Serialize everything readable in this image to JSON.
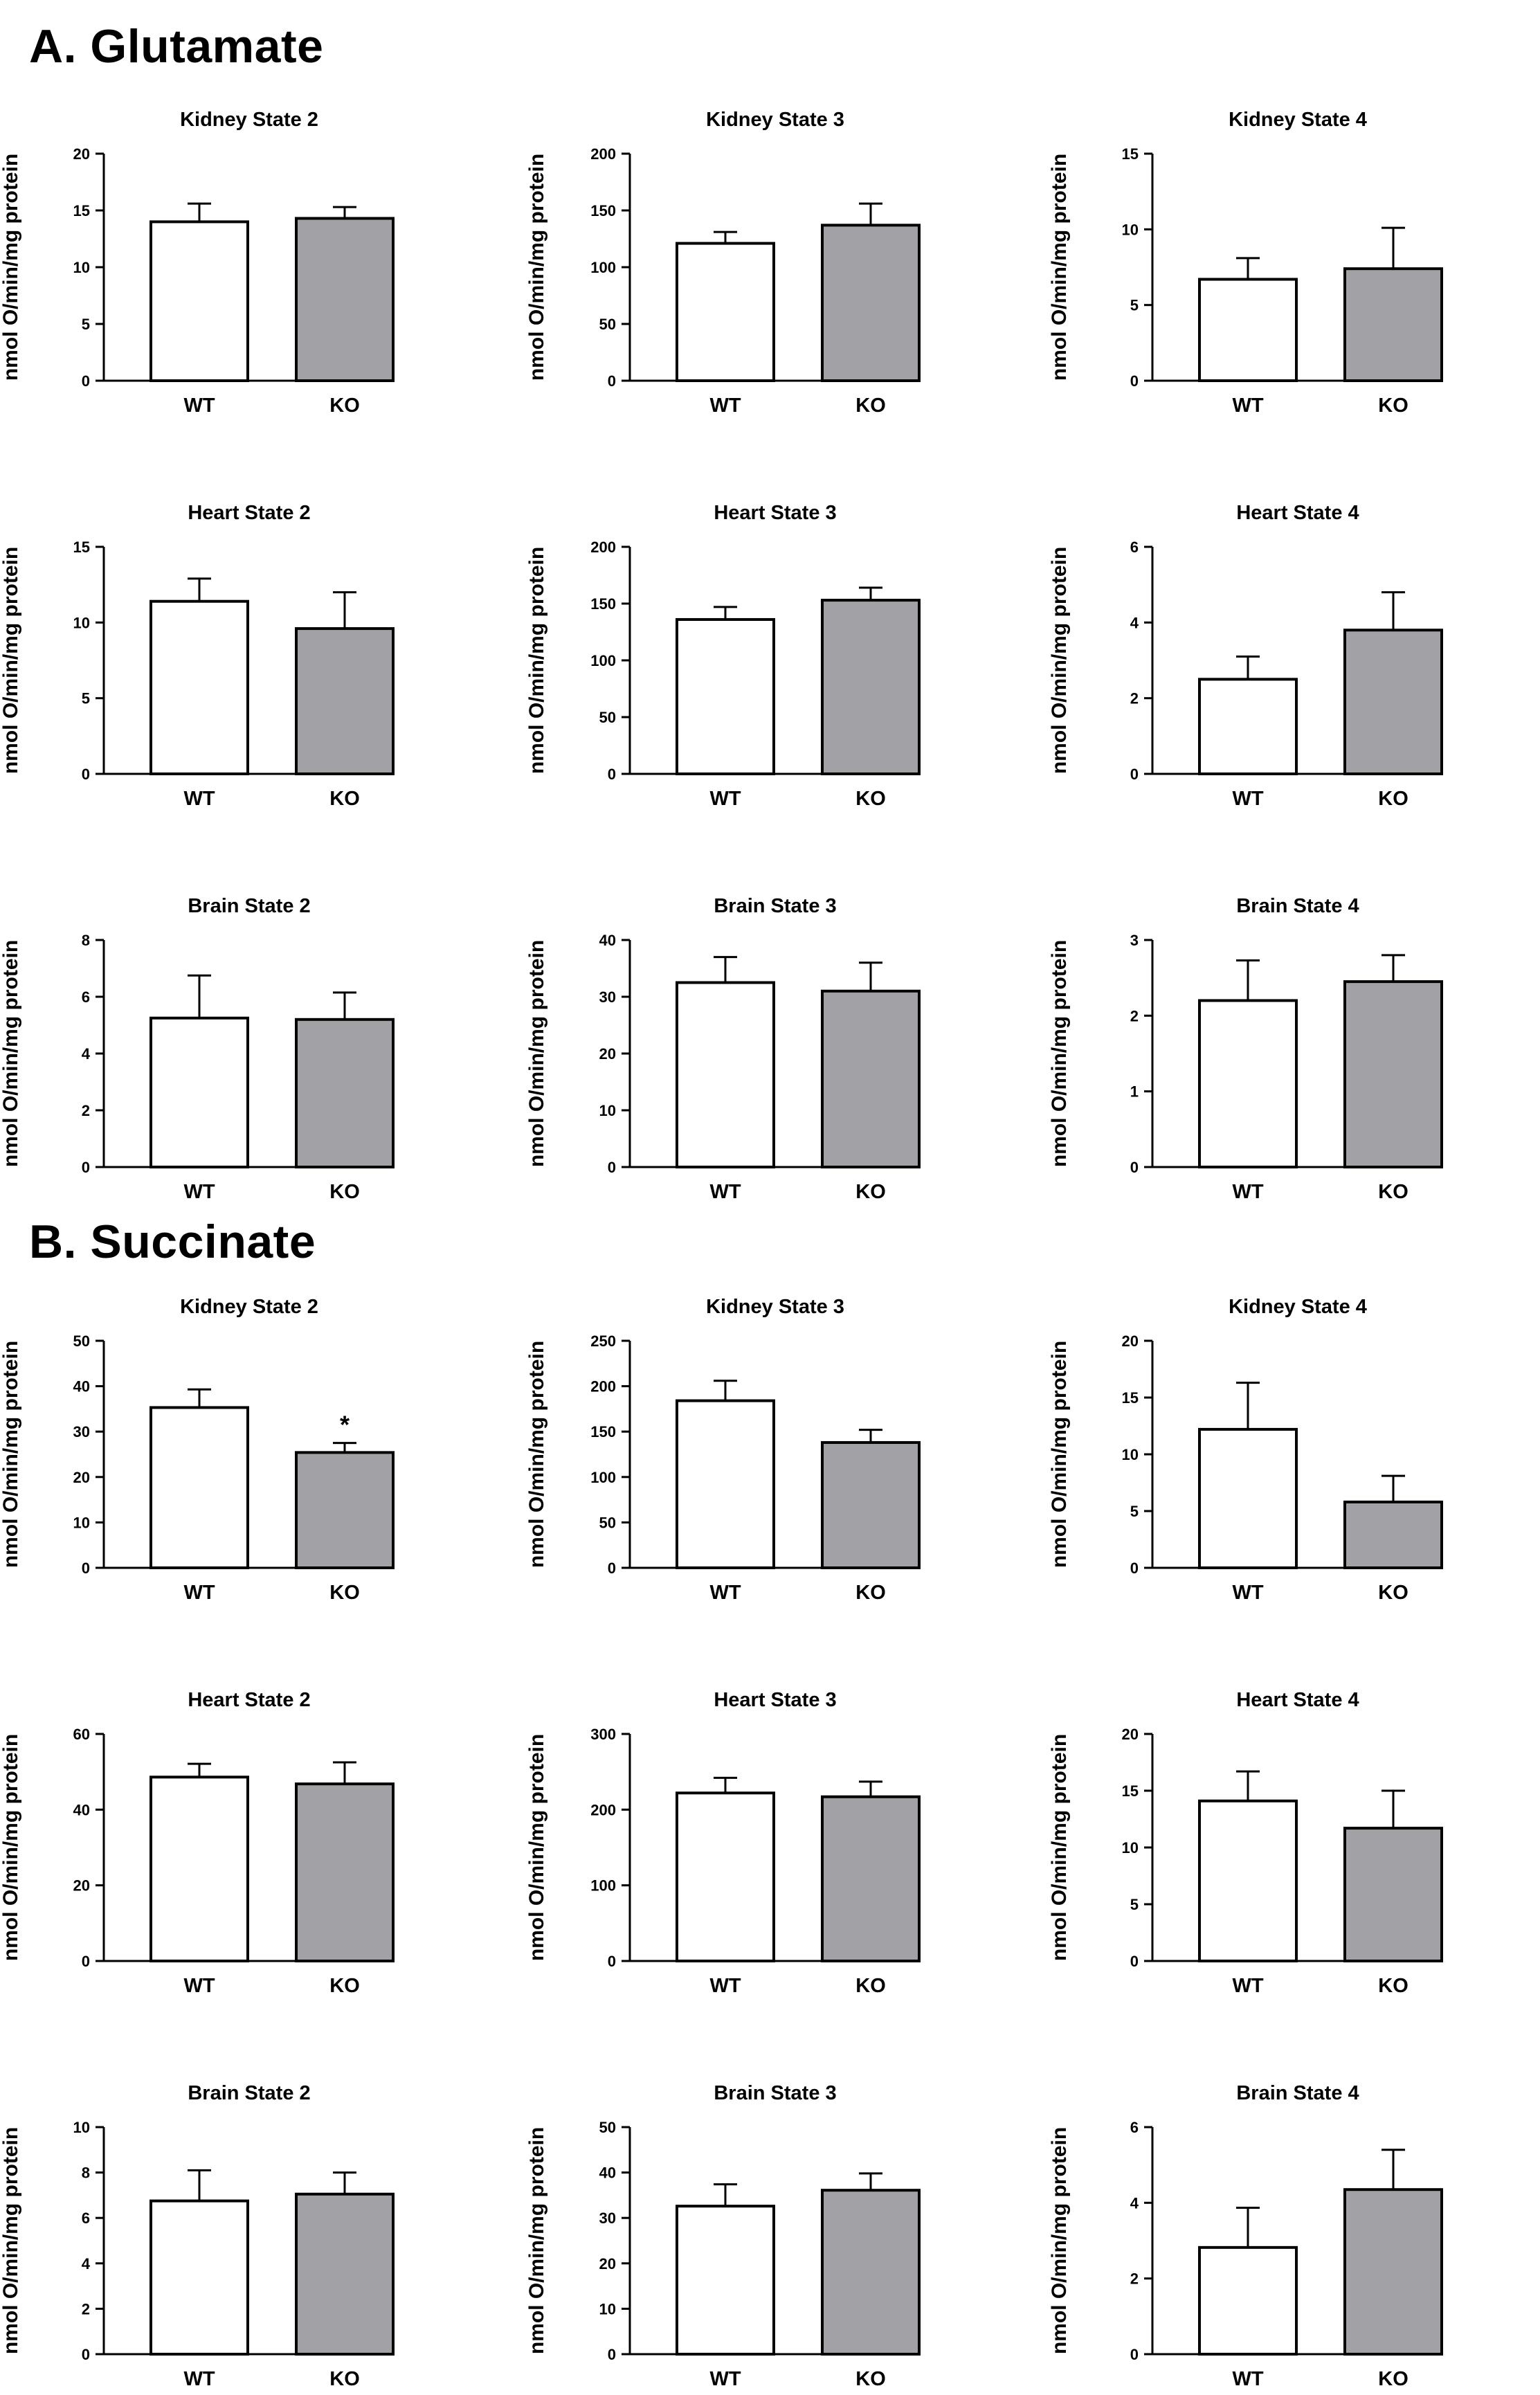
{
  "sections": [
    {
      "heading": "A.  Glutamate"
    },
    {
      "heading": "B.  Succinate"
    }
  ],
  "style": {
    "wt_fill": "#ffffff",
    "ko_fill": "#a2a2a6",
    "stroke": "#000000"
  },
  "chart_data": [
    {
      "type": "bar",
      "section": "A.  Glutamate",
      "title": "Kidney State 2",
      "categories": [
        "WT",
        "KO"
      ],
      "values": [
        14,
        14.3
      ],
      "errors": [
        1.6,
        1.0
      ],
      "ylabel": "nmol O/min/mg protein",
      "ylim": [
        0,
        20
      ],
      "yticks": [
        "0",
        "5",
        "10",
        "15",
        "20"
      ],
      "annotation": ""
    },
    {
      "type": "bar",
      "section": "A.  Glutamate",
      "title": "Kidney State 3",
      "categories": [
        "WT",
        "KO"
      ],
      "values": [
        121,
        137
      ],
      "errors": [
        10,
        19
      ],
      "ylabel": "nmol O/min/mg protein",
      "ylim": [
        0,
        200
      ],
      "yticks": [
        "0",
        "50",
        "100",
        "150",
        "200"
      ],
      "annotation": ""
    },
    {
      "type": "bar",
      "section": "A.  Glutamate",
      "title": "Kidney State 4",
      "categories": [
        "WT",
        "KO"
      ],
      "values": [
        6.7,
        7.4
      ],
      "errors": [
        1.4,
        2.7
      ],
      "ylabel": "nmol O/min/mg protein",
      "ylim": [
        0,
        15
      ],
      "yticks": [
        "0",
        "5",
        "10",
        "15"
      ],
      "annotation": ""
    },
    {
      "type": "bar",
      "section": "A.  Glutamate",
      "title": "Heart State 2",
      "categories": [
        "WT",
        "KO"
      ],
      "values": [
        11.4,
        9.6
      ],
      "errors": [
        1.5,
        2.4
      ],
      "ylabel": "nmol O/min/mg protein",
      "ylim": [
        0,
        15
      ],
      "yticks": [
        "0",
        "5",
        "10",
        "15"
      ],
      "annotation": ""
    },
    {
      "type": "bar",
      "section": "A.  Glutamate",
      "title": "Heart State 3",
      "categories": [
        "WT",
        "KO"
      ],
      "values": [
        136,
        153
      ],
      "errors": [
        11,
        11
      ],
      "ylabel": "nmol O/min/mg protein",
      "ylim": [
        0,
        200
      ],
      "yticks": [
        "0",
        "50",
        "100",
        "150",
        "200"
      ],
      "annotation": ""
    },
    {
      "type": "bar",
      "section": "A.  Glutamate",
      "title": "Heart State 4",
      "categories": [
        "WT",
        "KO"
      ],
      "values": [
        2.5,
        3.8
      ],
      "errors": [
        0.6,
        1.0
      ],
      "ylabel": "nmol O/min/mg protein",
      "ylim": [
        0,
        6
      ],
      "yticks": [
        "0",
        "2",
        "4",
        "6"
      ],
      "annotation": ""
    },
    {
      "type": "bar",
      "section": "A.  Glutamate",
      "title": "Brain State 2",
      "categories": [
        "WT",
        "KO"
      ],
      "values": [
        5.25,
        5.2
      ],
      "errors": [
        1.5,
        0.95
      ],
      "ylabel": "nmol O/min/mg protein",
      "ylim": [
        0,
        8
      ],
      "yticks": [
        "0",
        "2",
        "4",
        "6",
        "8"
      ],
      "annotation": ""
    },
    {
      "type": "bar",
      "section": "A.  Glutamate",
      "title": "Brain State 3",
      "categories": [
        "WT",
        "KO"
      ],
      "values": [
        32.5,
        31
      ],
      "errors": [
        4.5,
        5
      ],
      "ylabel": "nmol O/min/mg protein",
      "ylim": [
        0,
        40
      ],
      "yticks": [
        "0",
        "10",
        "20",
        "30",
        "40"
      ],
      "annotation": ""
    },
    {
      "type": "bar",
      "section": "A.  Glutamate",
      "title": "Brain State 4",
      "categories": [
        "WT",
        "KO"
      ],
      "values": [
        2.2,
        2.45
      ],
      "errors": [
        0.53,
        0.35
      ],
      "ylabel": "nmol O/min/mg protein",
      "ylim": [
        0,
        3
      ],
      "yticks": [
        "0",
        "1",
        "2",
        "3"
      ],
      "annotation": ""
    },
    {
      "type": "bar",
      "section": "B.  Succinate",
      "title": "Kidney State 2",
      "categories": [
        "WT",
        "KO"
      ],
      "values": [
        35.3,
        25.4
      ],
      "errors": [
        4,
        2.1
      ],
      "ylabel": "nmol O/min/mg protein",
      "ylim": [
        0,
        50
      ],
      "yticks": [
        "0",
        "10",
        "20",
        "30",
        "40",
        "50"
      ],
      "annotation": "*"
    },
    {
      "type": "bar",
      "section": "B.  Succinate",
      "title": "Kidney State 3",
      "categories": [
        "WT",
        "KO"
      ],
      "values": [
        184,
        138
      ],
      "errors": [
        22,
        14
      ],
      "ylabel": "nmol O/min/mg protein",
      "ylim": [
        0,
        250
      ],
      "yticks": [
        "0",
        "50",
        "100",
        "150",
        "200",
        "250"
      ],
      "annotation": ""
    },
    {
      "type": "bar",
      "section": "B.  Succinate",
      "title": "Kidney State 4",
      "categories": [
        "WT",
        "KO"
      ],
      "values": [
        12.2,
        5.8
      ],
      "errors": [
        4.1,
        2.3
      ],
      "ylabel": "nmol O/min/mg protein",
      "ylim": [
        0,
        20
      ],
      "yticks": [
        "0",
        "5",
        "10",
        "15",
        "20"
      ],
      "annotation": ""
    },
    {
      "type": "bar",
      "section": "B.  Succinate",
      "title": "Heart State 2",
      "categories": [
        "WT",
        "KO"
      ],
      "values": [
        48.6,
        46.8
      ],
      "errors": [
        3.5,
        5.7
      ],
      "ylabel": "nmol O/min/mg protein",
      "ylim": [
        0,
        60
      ],
      "yticks": [
        "0",
        "20",
        "40",
        "60"
      ],
      "annotation": ""
    },
    {
      "type": "bar",
      "section": "B.  Succinate",
      "title": "Heart State 3",
      "categories": [
        "WT",
        "KO"
      ],
      "values": [
        222,
        217
      ],
      "errors": [
        20,
        20
      ],
      "ylabel": "nmol O/min/mg protein",
      "ylim": [
        0,
        300
      ],
      "yticks": [
        "0",
        "100",
        "200",
        "300"
      ],
      "annotation": ""
    },
    {
      "type": "bar",
      "section": "B.  Succinate",
      "title": "Heart State 4",
      "categories": [
        "WT",
        "KO"
      ],
      "values": [
        14.1,
        11.7
      ],
      "errors": [
        2.6,
        3.3
      ],
      "ylabel": "nmol O/min/mg protein",
      "ylim": [
        0,
        20
      ],
      "yticks": [
        "0",
        "5",
        "10",
        "15",
        "20"
      ],
      "annotation": ""
    },
    {
      "type": "bar",
      "section": "B.  Succinate",
      "title": "Brain State 2",
      "categories": [
        "WT",
        "KO"
      ],
      "values": [
        6.75,
        7.05
      ],
      "errors": [
        1.35,
        0.95
      ],
      "ylabel": "nmol O/min/mg protein",
      "ylim": [
        0,
        10
      ],
      "yticks": [
        "0",
        "2",
        "4",
        "6",
        "8",
        "10"
      ],
      "annotation": ""
    },
    {
      "type": "bar",
      "section": "B.  Succinate",
      "title": "Brain State 3",
      "categories": [
        "WT",
        "KO"
      ],
      "values": [
        32.6,
        36.1
      ],
      "errors": [
        4.8,
        3.7
      ],
      "ylabel": "nmol O/min/mg protein",
      "ylim": [
        0,
        50
      ],
      "yticks": [
        "0",
        "10",
        "20",
        "30",
        "40",
        "50"
      ],
      "annotation": ""
    },
    {
      "type": "bar",
      "section": "B.  Succinate",
      "title": "Brain State 4",
      "categories": [
        "WT",
        "KO"
      ],
      "values": [
        2.82,
        4.35
      ],
      "errors": [
        1.05,
        1.05
      ],
      "ylabel": "nmol O/min/mg protein",
      "ylim": [
        0,
        6
      ],
      "yticks": [
        "0",
        "2",
        "4",
        "6"
      ],
      "annotation": ""
    }
  ]
}
